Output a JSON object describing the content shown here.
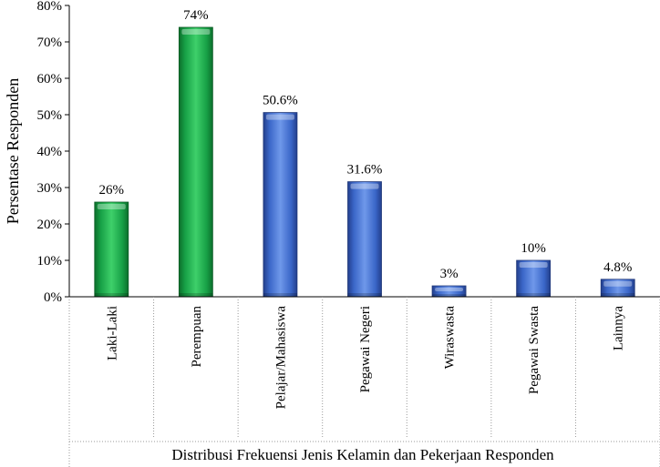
{
  "chart_data": {
    "type": "bar",
    "categories": [
      "Laki-Laki",
      "Perempuan",
      "Pelajar/Mahasiswa",
      "Pegawai Negeri",
      "Wiraswasta",
      "Pegawai Swasta",
      "Lainnya"
    ],
    "values": [
      26,
      74,
      50.6,
      31.6,
      3,
      10,
      4.8
    ],
    "data_labels": [
      "26%",
      "74%",
      "50.6%",
      "31.6%",
      "3%",
      "10%",
      "4.8%"
    ],
    "bar_colors": [
      "#1aa64a",
      "#1aa64a",
      "#3f6fd1",
      "#3f6fd1",
      "#3f6fd1",
      "#3f6fd1",
      "#3f6fd1"
    ],
    "ylabel": "Persentase Responden",
    "xlabel": "Distribusi Frekuensi Jenis Kelamin dan Pekerjaan Responden",
    "ylim": [
      0,
      80
    ],
    "yticks": [
      "0%",
      "10%",
      "20%",
      "30%",
      "40%",
      "50%",
      "60%",
      "70%",
      "80%"
    ],
    "grid": false
  }
}
